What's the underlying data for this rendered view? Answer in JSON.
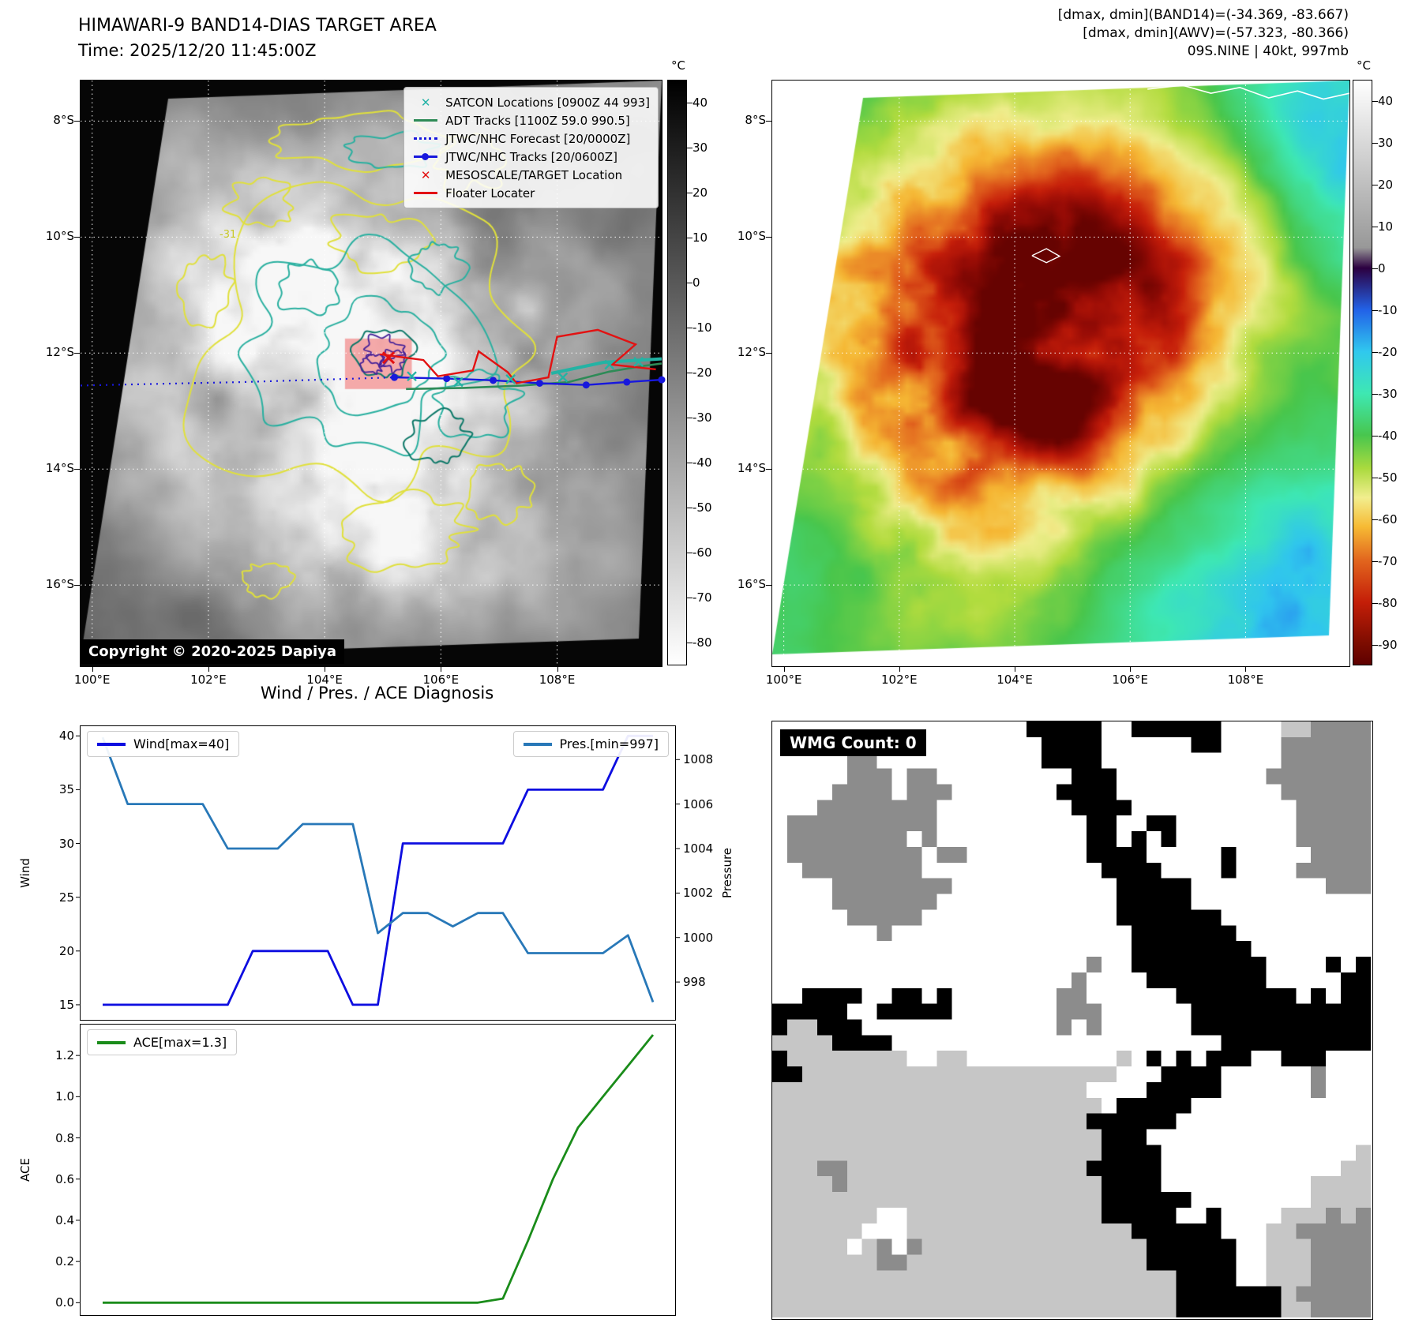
{
  "panel_tl": {
    "title": "HIMAWARI-9 BAND14-DIAS TARGET AREA",
    "subtitle": "Time: 2025/12/20 11:45:00Z",
    "copyright": "Copyright © 2020-2025 Dapiya",
    "contour_label": "-31",
    "colorbar": {
      "unit": "°C",
      "ticks": [
        40,
        30,
        20,
        10,
        0,
        -10,
        -20,
        -30,
        -40,
        -50,
        -60,
        -70,
        -80
      ],
      "vmax": 45,
      "vmin": -85
    },
    "axes": {
      "lon_ticks": [
        100,
        102,
        104,
        106,
        108
      ],
      "lon_labels": [
        "100°E",
        "102°E",
        "104°E",
        "106°E",
        "108°E"
      ],
      "lat_ticks": [
        8,
        10,
        12,
        14,
        16
      ],
      "lat_labels": [
        "8°S",
        "10°S",
        "12°S",
        "14°S",
        "16°S"
      ],
      "lon_range": [
        99.8,
        109.8
      ],
      "lat_range": [
        7.3,
        17.4
      ]
    },
    "legend": [
      {
        "label": "SATCON Locations [0900Z 44 993]",
        "marker": "x",
        "color": "#26b3a7"
      },
      {
        "label": "ADT Tracks [1100Z 59.0 990.5]",
        "marker": "line",
        "color": "#2e8b57"
      },
      {
        "label": "JTWC/NHC Forecast [20/0000Z]",
        "marker": "dotted",
        "color": "#1818dd"
      },
      {
        "label": "JTWC/NHC Tracks [20/0600Z]",
        "marker": "line-dot",
        "color": "#1818dd"
      },
      {
        "label": "MESOSCALE/TARGET Location",
        "marker": "x",
        "color": "#e21212"
      },
      {
        "label": "Floater Locater",
        "marker": "line",
        "color": "#e21212"
      }
    ],
    "tracks": {
      "forecast_dotted": [
        [
          99.8,
          12.56
        ],
        [
          102.6,
          12.5
        ],
        [
          105.2,
          12.42
        ]
      ],
      "jtwc": [
        [
          105.2,
          12.42
        ],
        [
          106.1,
          12.44
        ],
        [
          106.9,
          12.47
        ],
        [
          107.7,
          12.52
        ],
        [
          108.5,
          12.55
        ],
        [
          109.2,
          12.5
        ],
        [
          109.8,
          12.46
        ]
      ],
      "adt": [
        [
          105.4,
          12.62
        ],
        [
          106.4,
          12.6
        ],
        [
          107.4,
          12.56
        ],
        [
          108.2,
          12.5
        ],
        [
          108.9,
          12.32
        ],
        [
          109.5,
          12.22
        ],
        [
          109.8,
          12.18
        ]
      ],
      "adt2": [
        [
          107.9,
          12.35
        ],
        [
          108.8,
          12.16
        ],
        [
          109.8,
          12.1
        ]
      ],
      "floater": [
        [
          104.95,
          12.02
        ],
        [
          105.7,
          12.12
        ],
        [
          105.95,
          12.4
        ],
        [
          106.55,
          12.3
        ],
        [
          106.65,
          11.97
        ],
        [
          107.15,
          12.33
        ],
        [
          107.3,
          12.52
        ],
        [
          107.85,
          12.42
        ],
        [
          108.0,
          11.72
        ],
        [
          108.7,
          11.6
        ],
        [
          109.35,
          11.85
        ],
        [
          108.95,
          12.2
        ],
        [
          109.7,
          12.28
        ]
      ],
      "satcon_x": [
        [
          105.5,
          12.4
        ],
        [
          106.3,
          12.5
        ],
        [
          107.2,
          12.45
        ],
        [
          108.1,
          12.42
        ],
        [
          108.9,
          12.2
        ],
        [
          109.4,
          12.15
        ]
      ],
      "target_x": [
        105.1,
        12.08
      ],
      "target_box": [
        104.35,
        11.75,
        105.5,
        12.62
      ]
    }
  },
  "panel_tr": {
    "annotations": [
      "[dmax, dmin](BAND14)=(-34.369, -83.667)",
      "[dmax, dmin](AWV)=(-57.323, -80.366)",
      "09S.NINE | 40kt, 997mb"
    ],
    "colorbar": {
      "unit": "°C",
      "ticks": [
        40,
        30,
        20,
        10,
        0,
        -10,
        -20,
        -30,
        -40,
        -50,
        -60,
        -70,
        -80,
        -90
      ],
      "vmax": 45,
      "vmin": -95
    },
    "axes": {
      "lon_ticks": [
        100,
        102,
        104,
        106,
        108
      ],
      "lon_labels": [
        "100°E",
        "102°E",
        "104°E",
        "106°E",
        "108°E"
      ],
      "lat_ticks": [
        8,
        10,
        12,
        14,
        16
      ],
      "lat_labels": [
        "8°S",
        "10°S",
        "12°S",
        "14°S",
        "16°S"
      ],
      "lon_range": [
        99.8,
        109.8
      ],
      "lat_range": [
        7.3,
        17.4
      ]
    },
    "coastline": [
      [
        106.3,
        7.45
      ],
      [
        106.9,
        7.38
      ],
      [
        107.4,
        7.52
      ],
      [
        107.9,
        7.42
      ],
      [
        108.4,
        7.6
      ],
      [
        108.9,
        7.48
      ],
      [
        109.35,
        7.62
      ],
      [
        109.8,
        7.52
      ]
    ],
    "small_island": [
      [
        104.3,
        10.32
      ],
      [
        104.55,
        10.2
      ],
      [
        104.78,
        10.33
      ],
      [
        104.55,
        10.44
      ],
      [
        104.3,
        10.32
      ]
    ]
  },
  "panel_bl": {
    "title": "Wind / Pres. / ACE Diagnosis"
  },
  "panel_br": {
    "label": "WMG Count: 0",
    "palette": {
      "W": "#ffffff",
      "L": "#c6c6c6",
      "G": "#8c8c8c",
      "B": "#000000"
    },
    "grid": [
      "WWWWWWWWWBBWBBBWWLGG",
      "WWWGWWWWWBBWWWWWWGGG",
      "WWGGWGWWWWBBWWWWWGGG",
      "WGGGGGWWWWWBWBWWWWGG",
      "WGGGGWGWWWWBBWWBWWGG",
      "WWGGGGWWWWWWBBWWWWWG",
      "WWWGGWWWWWWWBBBWWWWW",
      "WWWWWWWWWWWWBBBBWWWW",
      "WWWWWWWWWWGWWBBBBWWB",
      "BBBWBBWWWWGWWWBBBBBB",
      "LLBBWWWWWWWWWWWBBBBB",
      "BLLLLLLLLLLLWBBWWWGW",
      "LLLLLLLLLLLWBBWWWWWW",
      "LLLLLLLLLLLBBWWWWWWW",
      "LLGLLLLLLLLBBWWWWWWL",
      "LLLLLLLLLLLBBBWWWWLL",
      "LLLWWLLLLLLLBBBWWLGG",
      "LLLLGLLLLLLLLBBBWLGG",
      "LLLLLLLLLLLLLLBBBLGG"
    ]
  },
  "chart_data": [
    {
      "type": "line",
      "panel": "wind-pressure",
      "series": [
        {
          "name": "Wind[max=40]",
          "color": "#0d0de0",
          "axis": "left",
          "values": [
            15,
            15,
            15,
            15,
            15,
            15,
            20,
            20,
            20,
            20,
            15,
            15,
            30,
            30,
            30,
            30,
            30,
            35,
            35,
            35,
            35,
            40,
            40
          ]
        },
        {
          "name": "Pres.[min=997]",
          "color": "#2878b8",
          "axis": "right",
          "values": [
            1009,
            1006,
            1006,
            1006,
            1006,
            1004,
            1004,
            1004,
            1005.1,
            1005.1,
            1005.1,
            1000.2,
            1001.1,
            1001.1,
            1000.5,
            1001.1,
            1001.1,
            999.3,
            999.3,
            999.3,
            999.3,
            1000.1,
            997.1
          ]
        }
      ],
      "left_axis": {
        "label": "Wind",
        "ticks": [
          15,
          20,
          25,
          30,
          35,
          40
        ],
        "lim": [
          13.6,
          40.9
        ],
        "decimals": 0
      },
      "right_axis": {
        "label": "Pressure",
        "ticks": [
          998,
          1000,
          1002,
          1004,
          1006,
          1008
        ],
        "lim": [
          996.3,
          1009.5
        ],
        "decimals": 0
      },
      "legend_position": "top-left and top-right",
      "grid": false
    },
    {
      "type": "line",
      "panel": "ace",
      "series": [
        {
          "name": "ACE[max=1.3]",
          "color": "#1a8c1a",
          "axis": "left",
          "values": [
            0,
            0,
            0,
            0,
            0,
            0,
            0,
            0,
            0,
            0,
            0,
            0,
            0,
            0,
            0,
            0,
            0.02,
            0.3,
            0.6,
            0.85,
            1.0,
            1.15,
            1.3
          ]
        }
      ],
      "left_axis": {
        "label": "ACE",
        "ticks": [
          0.0,
          0.2,
          0.4,
          0.6,
          0.8,
          1.0,
          1.2
        ],
        "lim": [
          -0.06,
          1.35
        ],
        "decimals": 1
      },
      "legend_position": "top-left",
      "grid": false
    }
  ]
}
